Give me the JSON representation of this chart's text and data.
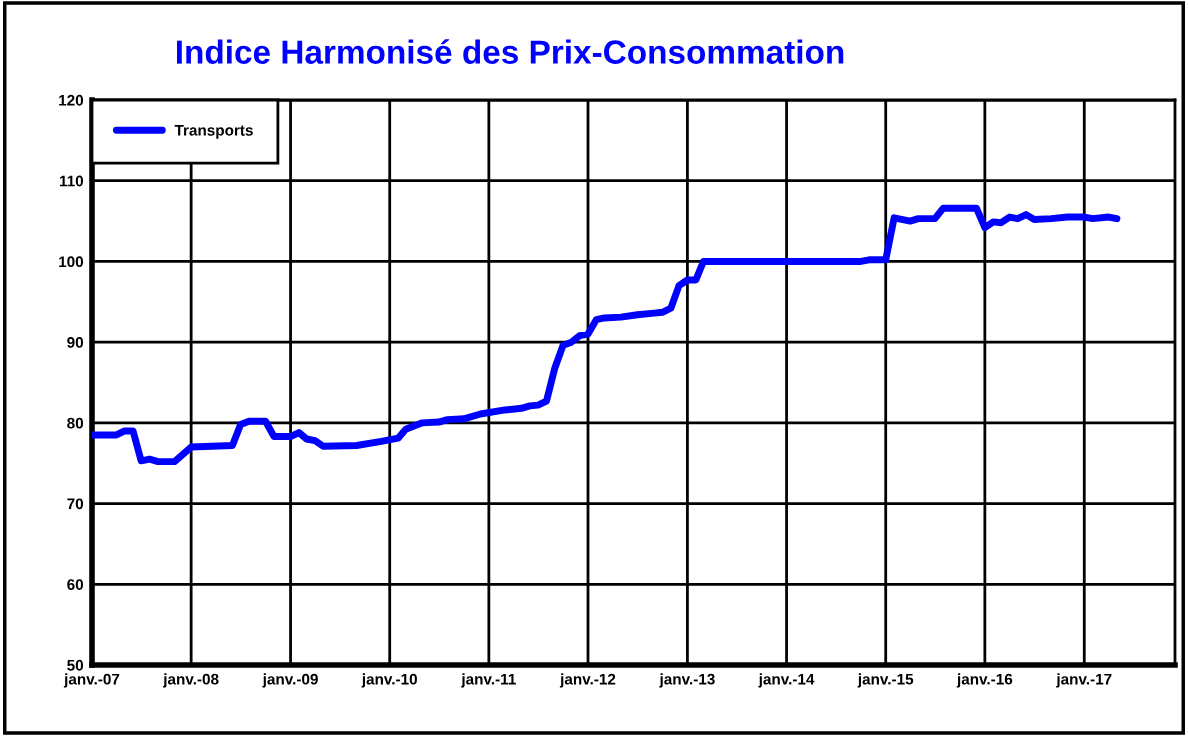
{
  "chart_data": {
    "type": "line",
    "title": "Indice Harmonisé des Prix-Consommation",
    "x": [
      "2007-01",
      "2007-04",
      "2007-05",
      "2007-06",
      "2007-07",
      "2007-08",
      "2007-09",
      "2007-11",
      "2008-01",
      "2008-06",
      "2008-07",
      "2008-08",
      "2008-10",
      "2008-11",
      "2009-01",
      "2009-02",
      "2009-03",
      "2009-04",
      "2009-05",
      "2009-09",
      "2009-12",
      "2010-02",
      "2010-03",
      "2010-05",
      "2010-07",
      "2010-08",
      "2010-10",
      "2010-12",
      "2011-03",
      "2011-05",
      "2011-06",
      "2011-07",
      "2011-08",
      "2011-09",
      "2011-10",
      "2011-11",
      "2011-12",
      "2012-01",
      "2012-02",
      "2012-03",
      "2012-05",
      "2012-07",
      "2012-09",
      "2012-10",
      "2012-11",
      "2012-12",
      "2013-01",
      "2013-02",
      "2013-03",
      "2014-10",
      "2014-11",
      "2015-01",
      "2015-02",
      "2015-04",
      "2015-05",
      "2015-07",
      "2015-08",
      "2015-12",
      "2016-01",
      "2016-02",
      "2016-03",
      "2016-04",
      "2016-05",
      "2016-06",
      "2016-07",
      "2016-09",
      "2016-11",
      "2017-01",
      "2017-02",
      "2017-04",
      "2017-05"
    ],
    "series": [
      {
        "name": "Transports",
        "color": "#0000ff",
        "values": [
          78.5,
          78.5,
          79,
          79,
          75.3,
          75.5,
          75.2,
          75.2,
          77,
          77.2,
          79.8,
          80.2,
          80.2,
          78.3,
          78.3,
          78.8,
          78,
          77.8,
          77.1,
          77.2,
          77.7,
          78.1,
          79.2,
          80,
          80.1,
          80.4,
          80.5,
          81.1,
          81.6,
          81.8,
          82.1,
          82.2,
          82.7,
          86.8,
          89.6,
          90,
          90.8,
          91,
          92.8,
          93,
          93.1,
          93.4,
          93.6,
          93.7,
          94.2,
          97,
          97.7,
          97.7,
          100,
          100,
          100.2,
          100.2,
          105.4,
          105,
          105.3,
          105.3,
          106.6,
          106.6,
          104.2,
          104.9,
          104.8,
          105.5,
          105.3,
          105.8,
          105.2,
          105.3,
          105.5,
          105.5,
          105.3,
          105.5,
          105.3
        ]
      }
    ],
    "xlim": [
      "2007-01",
      "2017-12"
    ],
    "xticks": [
      {
        "value": "2007-01",
        "label": "janv.-07"
      },
      {
        "value": "2008-01",
        "label": "janv.-08"
      },
      {
        "value": "2009-01",
        "label": "janv.-09"
      },
      {
        "value": "2010-01",
        "label": "janv.-10"
      },
      {
        "value": "2011-01",
        "label": "janv.-11"
      },
      {
        "value": "2012-01",
        "label": "janv.-12"
      },
      {
        "value": "2013-01",
        "label": "janv.-13"
      },
      {
        "value": "2014-01",
        "label": "janv.-14"
      },
      {
        "value": "2015-01",
        "label": "janv.-15"
      },
      {
        "value": "2016-01",
        "label": "janv.-16"
      },
      {
        "value": "2017-01",
        "label": "janv.-17"
      }
    ],
    "ylim": [
      50,
      120
    ],
    "yticks": [
      50,
      60,
      70,
      80,
      90,
      100,
      110,
      120
    ],
    "grid": true,
    "legend": "top left",
    "marker": "none",
    "line_style": "solid"
  }
}
